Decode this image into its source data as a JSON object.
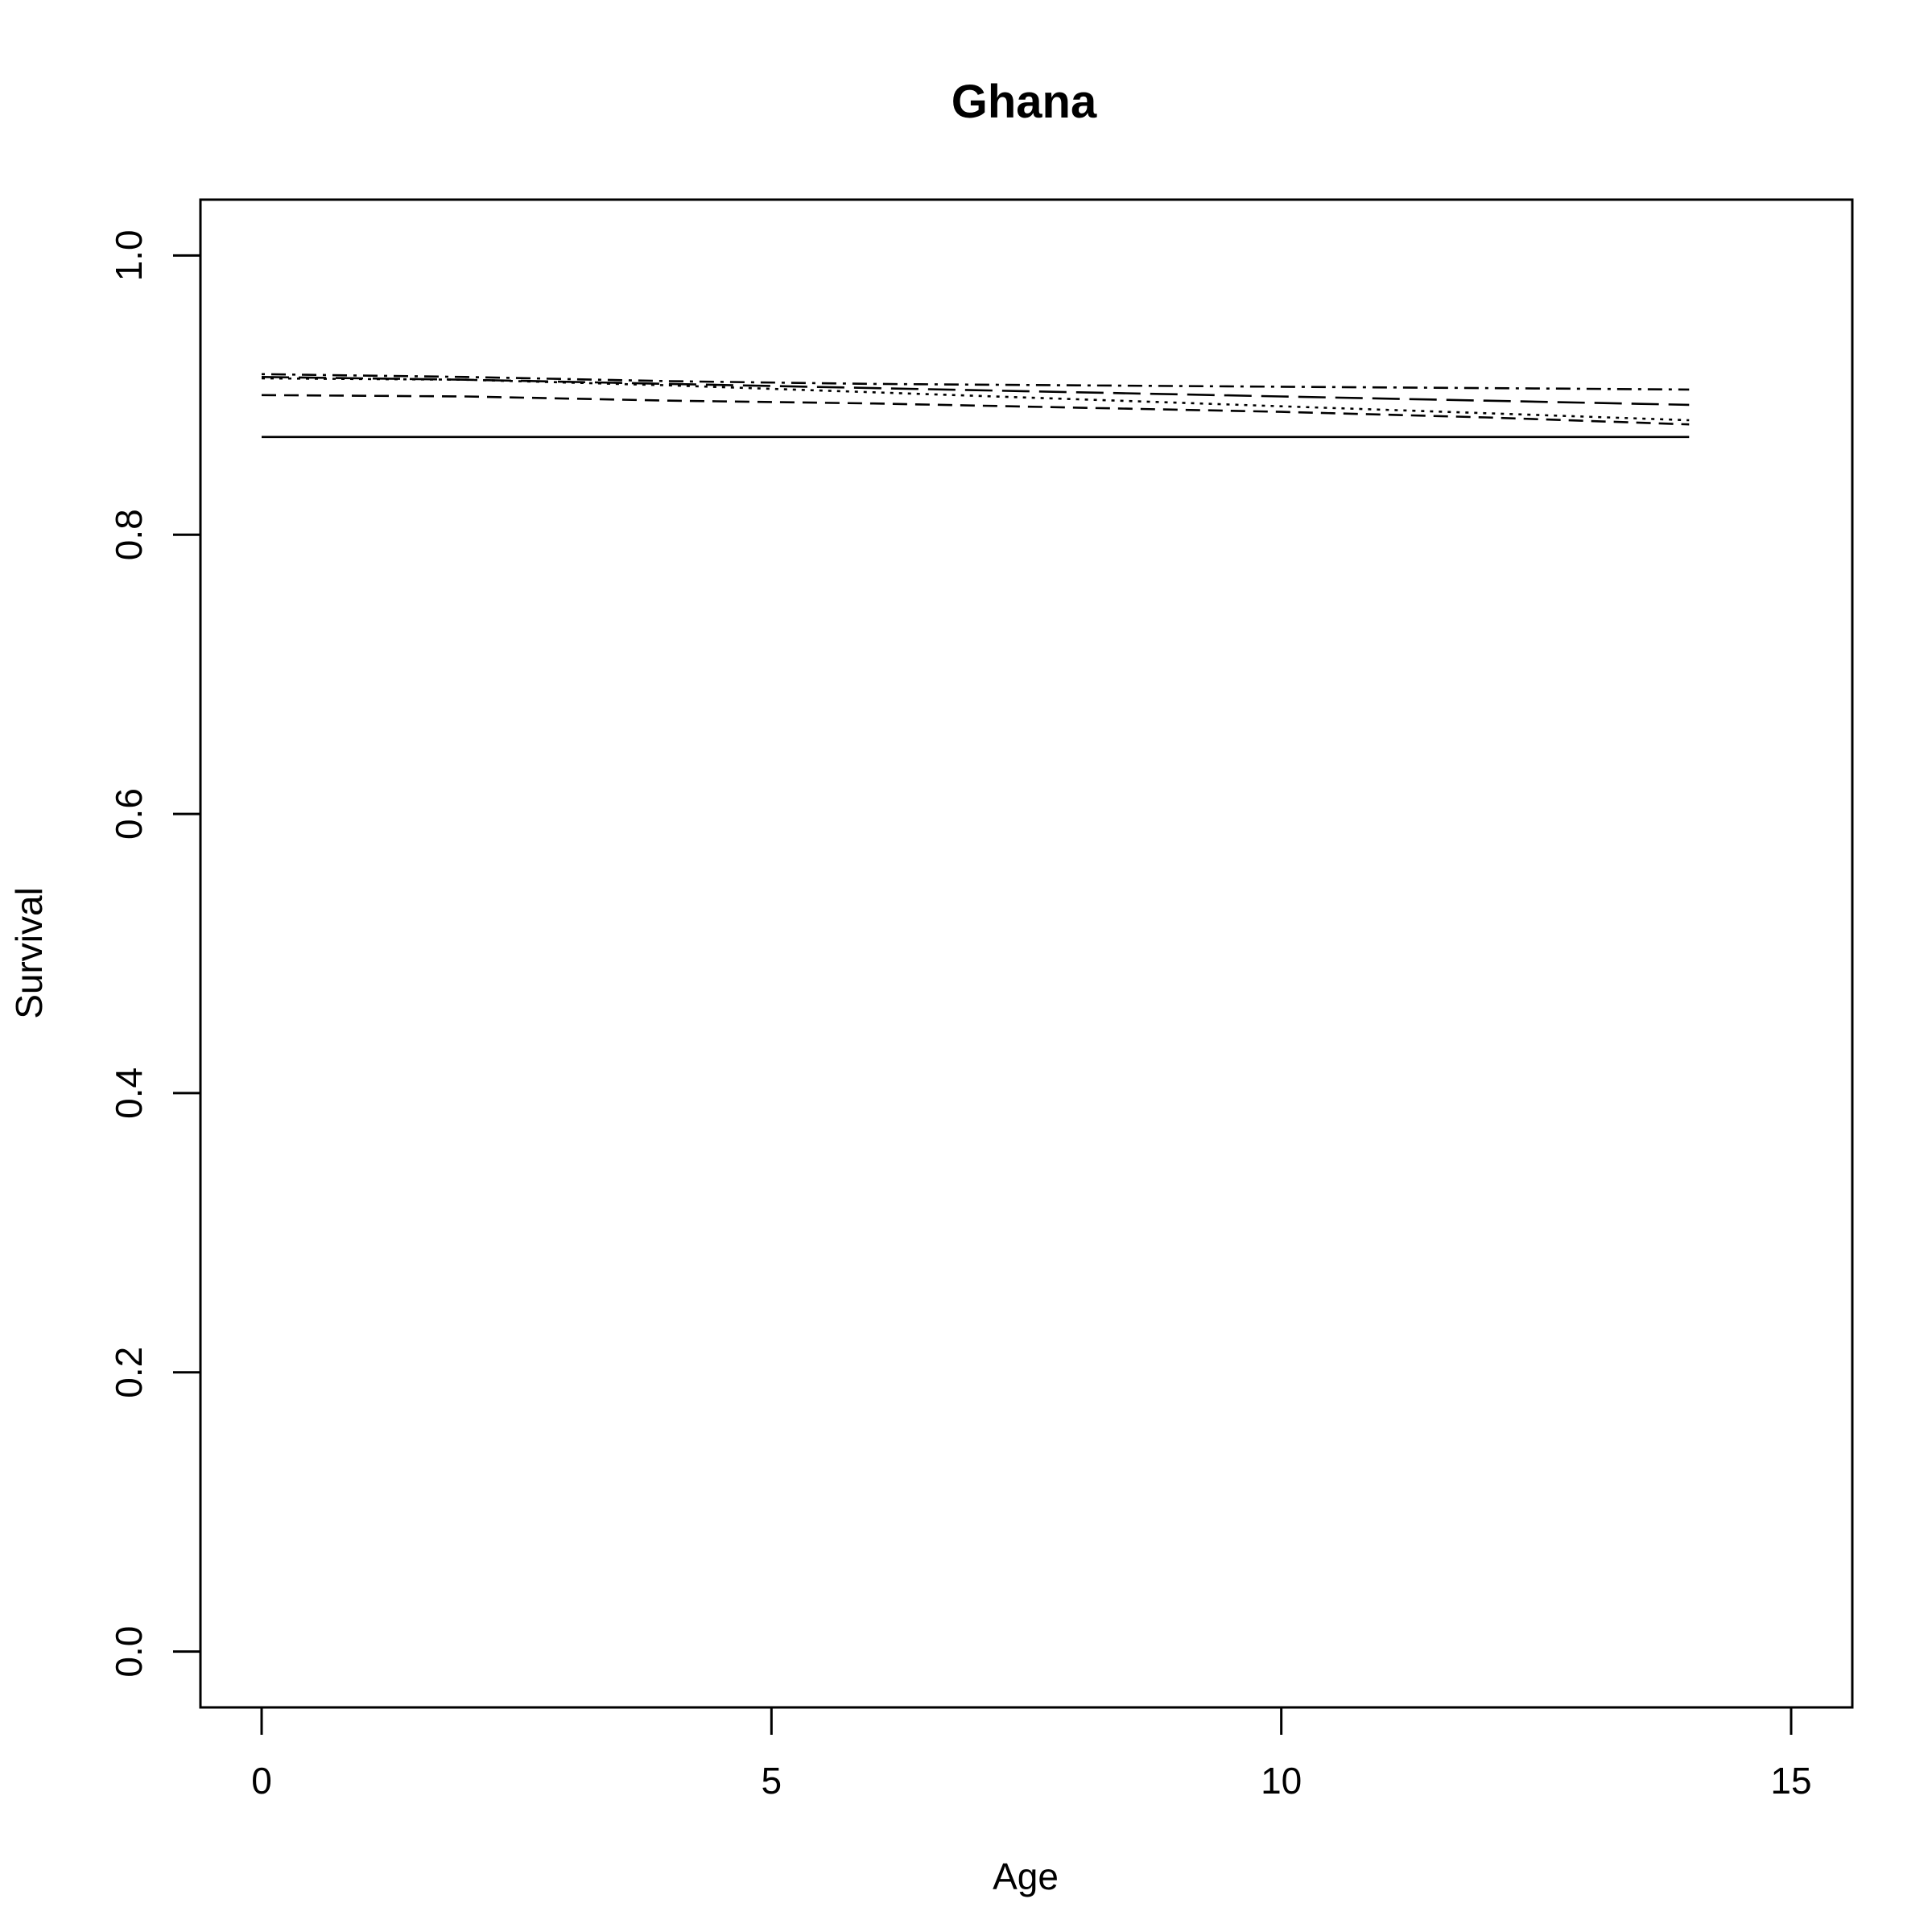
{
  "chart_data": {
    "type": "line",
    "title": "Ghana",
    "xlabel": "Age",
    "ylabel": "Survival",
    "xlim": [
      -0.6,
      15.6
    ],
    "ylim": [
      -0.04,
      1.04
    ],
    "x_ticks": [
      0,
      5,
      10,
      15
    ],
    "y_ticks": [
      0.0,
      0.2,
      0.4,
      0.6,
      0.8,
      1.0
    ],
    "x_tick_labels": [
      "0",
      "5",
      "10",
      "15"
    ],
    "y_tick_labels": [
      "0.0",
      "0.2",
      "0.4",
      "0.6",
      "0.8",
      "1.0"
    ],
    "grid": false,
    "legend": "none",
    "series": [
      {
        "line_style": "solid",
        "x": [
          0,
          14
        ],
        "y": [
          0.87,
          0.87
        ]
      },
      {
        "line_style": "dashed",
        "x": [
          0,
          2,
          4,
          6,
          8,
          10,
          12,
          14
        ],
        "y": [
          0.9,
          0.899,
          0.896,
          0.894,
          0.891,
          0.888,
          0.884,
          0.879
        ]
      },
      {
        "line_style": "dotted",
        "x": [
          0,
          2,
          4,
          6,
          8,
          10,
          12,
          14
        ],
        "y": [
          0.912,
          0.911,
          0.907,
          0.902,
          0.897,
          0.892,
          0.887,
          0.882
        ]
      },
      {
        "line_style": "dotdash",
        "x": [
          0,
          2,
          4,
          6,
          8,
          10,
          12,
          14
        ],
        "y": [
          0.915,
          0.913,
          0.91,
          0.908,
          0.907,
          0.906,
          0.905,
          0.904
        ]
      },
      {
        "line_style": "longdash",
        "x": [
          0,
          2,
          4,
          6,
          8,
          10,
          12,
          14
        ],
        "y": [
          0.913,
          0.911,
          0.908,
          0.905,
          0.902,
          0.899,
          0.896,
          0.893
        ]
      }
    ]
  }
}
